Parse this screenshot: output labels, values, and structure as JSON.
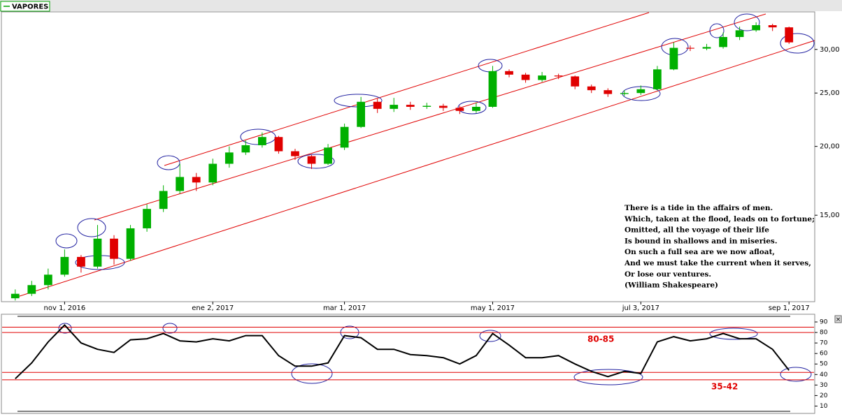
{
  "chart_data": [
    {
      "type": "candlestick",
      "categories": [
        null,
        null,
        null,
        "nov 1, 2016",
        null,
        null,
        null,
        null,
        null,
        null,
        null,
        null,
        "ene 2, 2017",
        null,
        null,
        null,
        null,
        null,
        null,
        null,
        "mar 1, 2017",
        null,
        null,
        null,
        null,
        null,
        null,
        null,
        null,
        "may 1, 2017",
        null,
        null,
        null,
        null,
        null,
        null,
        null,
        null,
        "jul 3, 2017",
        null,
        null,
        null,
        null,
        null,
        null,
        null,
        null,
        "sep 1, 2017"
      ],
      "series": [
        {
          "name": "VAPORES",
          "color": "#00a000",
          "up_color": "#00b000",
          "down_color": "#e00000",
          "open": [
            10.6,
            10.8,
            11.2,
            11.7,
            12.6,
            12.1,
            13.6,
            12.5,
            14.2,
            15.4,
            16.6,
            17.6,
            17.2,
            18.6,
            19.5,
            20.1,
            20.8,
            19.6,
            19.2,
            18.6,
            19.9,
            21.7,
            24.1,
            23.4,
            23.8,
            23.6,
            23.7,
            23.5,
            23.2,
            23.6,
            27.4,
            27.0,
            26.4,
            26.9,
            26.8,
            25.7,
            25.3,
            24.9,
            25.0,
            25.4,
            27.6,
            30.2,
            30.1,
            30.3,
            31.6,
            32.5,
            33.2,
            32.9
          ],
          "high": [
            11.0,
            11.4,
            12.0,
            13.0,
            12.7,
            14.4,
            13.8,
            14.4,
            15.7,
            17.0,
            18.6,
            17.9,
            19.0,
            20.0,
            20.5,
            21.2,
            20.9,
            19.8,
            19.3,
            20.2,
            22.0,
            24.6,
            24.4,
            24.5,
            24.1,
            24.0,
            23.9,
            23.7,
            24.0,
            28.0,
            27.6,
            27.2,
            27.3,
            27.1,
            26.9,
            25.9,
            25.5,
            25.3,
            25.8,
            28.0,
            30.9,
            30.5,
            30.7,
            32.2,
            33.0,
            33.6,
            33.4,
            33.0
          ],
          "low": [
            10.5,
            10.7,
            11.0,
            11.6,
            11.8,
            12.0,
            12.2,
            12.4,
            14.0,
            15.2,
            16.4,
            16.6,
            17.0,
            18.3,
            19.3,
            19.9,
            19.4,
            18.9,
            18.2,
            18.5,
            19.7,
            21.6,
            23.0,
            23.1,
            23.3,
            23.4,
            23.2,
            22.9,
            23.0,
            23.5,
            26.7,
            26.1,
            26.2,
            26.5,
            25.4,
            25.0,
            24.6,
            24.7,
            24.8,
            25.3,
            27.5,
            29.8,
            29.9,
            30.1,
            31.2,
            32.3,
            32.4,
            30.7
          ],
          "close": [
            10.8,
            11.2,
            11.7,
            12.6,
            12.1,
            13.6,
            12.5,
            14.2,
            15.4,
            16.6,
            17.6,
            17.2,
            18.6,
            19.5,
            20.1,
            20.8,
            19.6,
            19.2,
            18.6,
            19.9,
            21.7,
            24.1,
            23.4,
            23.8,
            23.6,
            23.7,
            23.5,
            23.2,
            23.6,
            27.4,
            27.0,
            26.4,
            26.9,
            26.8,
            25.7,
            25.3,
            24.9,
            25.0,
            25.4,
            27.6,
            30.2,
            30.1,
            30.3,
            31.6,
            32.5,
            33.2,
            32.9,
            30.9
          ]
        }
      ],
      "ylim": [
        10.45,
        35.1
      ],
      "log_scale": true,
      "yticks": [
        {
          "value": 15,
          "label": "15,00"
        },
        {
          "value": 20,
          "label": "20,00"
        },
        {
          "value": 25,
          "label": "25,00"
        },
        {
          "value": 30,
          "label": "30,00"
        }
      ],
      "annotation": [
        "There is a tide in the affairs of men.",
        "Which, taken at the flood, leads on to fortune;",
        "Omitted, all the voyage of their life",
        "Is bound in shallows and in miseries.",
        "On such a full sea are we now afloat,",
        "And we must take the current when it serves,",
        "Or lose our ventures.",
        "(William Shakespeare)"
      ]
    },
    {
      "type": "line",
      "color": "#000000",
      "values": [
        36,
        51,
        71,
        87,
        70,
        64,
        61,
        73,
        74,
        79,
        72,
        71,
        74,
        72,
        77,
        77,
        58,
        48,
        48,
        51,
        77,
        75,
        64,
        64,
        59,
        58,
        56,
        50,
        58,
        79,
        68,
        56,
        56,
        58,
        50,
        43,
        38,
        43,
        41,
        71,
        76,
        72,
        74,
        79,
        74,
        74,
        64,
        44
      ],
      "ylim": [
        3,
        96
      ],
      "yticks": [
        10,
        20,
        30,
        40,
        50,
        60,
        70,
        80,
        90
      ],
      "bands": [
        {
          "label": "80-85",
          "from": 80,
          "to": 85,
          "color": "#e00000"
        },
        {
          "label": "35-42",
          "from": 35,
          "to": 42,
          "color": "#e00000"
        }
      ]
    }
  ]
}
